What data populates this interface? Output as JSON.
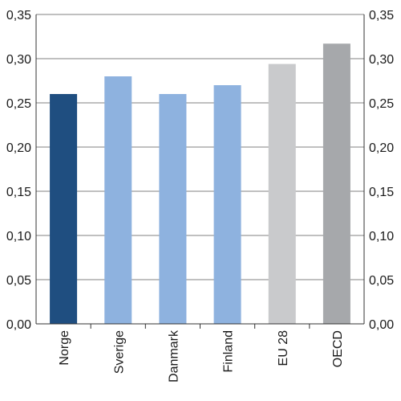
{
  "chart_data": {
    "type": "bar",
    "title": "",
    "xlabel": "",
    "ylabel": "",
    "categories": [
      "Norge",
      "Sverige",
      "Danmark",
      "Finland",
      "EU 28",
      "OECD"
    ],
    "values": [
      0.26,
      0.28,
      0.26,
      0.27,
      0.294,
      0.317
    ],
    "bar_colors": [
      "#1f4e80",
      "#8eb2df",
      "#8eb2df",
      "#8eb2df",
      "#c9cacc",
      "#a6a8ab"
    ],
    "ylim": [
      0,
      0.35
    ],
    "yticks": [
      "0,00",
      "0,05",
      "0,10",
      "0,15",
      "0,20",
      "0,25",
      "0,30",
      "0,35"
    ],
    "grid": true,
    "y_axis_both_sides": true,
    "legend": "none",
    "colors": {
      "grid": "#808080",
      "axis": "#333333",
      "text": "#1a1a1a"
    }
  }
}
